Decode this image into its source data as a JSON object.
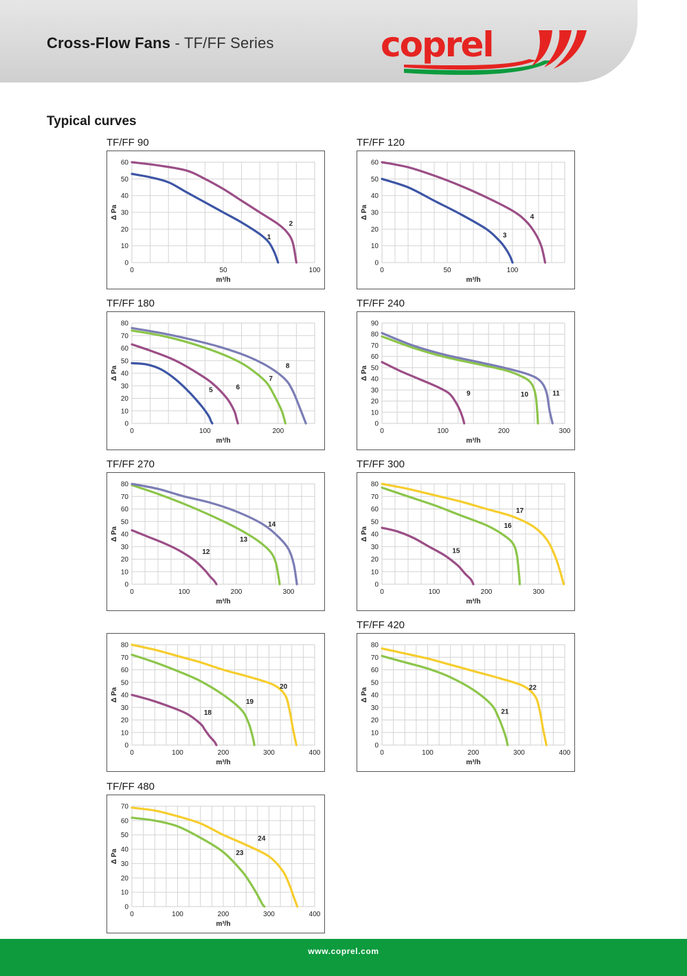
{
  "header": {
    "title_strong": "Cross-Flow Fans",
    "title_rest": " - TF/FF Series",
    "logo_text": "coprel"
  },
  "section_title": "Typical curves",
  "footer": {
    "url": "www.coprel.com"
  },
  "colors": {
    "magenta": "#9b4e86",
    "blue": "#3d55a5",
    "lavender": "#7b7db5",
    "green": "#8cc54a",
    "yellow": "#f6cd2d",
    "brand_red": "#e52421",
    "brand_green": "#0d9b3e"
  },
  "chart_data": [
    {
      "type": "line",
      "title": "TF/FF 90",
      "xlabel": "m³/h",
      "ylabel": "Δ Pa",
      "xlim": [
        0,
        100
      ],
      "ylim": [
        0,
        60
      ],
      "xticks": [
        0,
        50,
        100
      ],
      "yticks": [
        0,
        10,
        20,
        30,
        40,
        50,
        60
      ],
      "grid": true,
      "series": [
        {
          "name": "1",
          "color": "blue",
          "x": [
            0,
            10,
            20,
            30,
            40,
            50,
            60,
            70,
            75,
            78,
            80
          ],
          "y": [
            53,
            51,
            48,
            42,
            36,
            30,
            24,
            17,
            12,
            6,
            0
          ]
        },
        {
          "name": "2",
          "color": "magenta",
          "x": [
            0,
            15,
            30,
            40,
            50,
            60,
            70,
            80,
            85,
            88,
            90
          ],
          "y": [
            60,
            58,
            55,
            50,
            44,
            37,
            30,
            23,
            18,
            12,
            0
          ]
        }
      ],
      "labels": [
        {
          "text": "1",
          "x": 75,
          "y": 14
        },
        {
          "text": "2",
          "x": 87,
          "y": 22
        }
      ]
    },
    {
      "type": "line",
      "title": "TF/FF 120",
      "xlabel": "m³/h",
      "ylabel": "Δ Pa",
      "xlim": [
        0,
        140
      ],
      "ylim": [
        0,
        60
      ],
      "xticks": [
        0,
        50,
        100
      ],
      "yticks": [
        0,
        10,
        20,
        30,
        40,
        50,
        60
      ],
      "grid": true,
      "series": [
        {
          "name": "3",
          "color": "blue",
          "x": [
            0,
            20,
            40,
            60,
            80,
            90,
            95,
            98,
            100
          ],
          "y": [
            50,
            45,
            37,
            29,
            20,
            13,
            8,
            4,
            0
          ]
        },
        {
          "name": "4",
          "color": "magenta",
          "x": [
            0,
            20,
            40,
            60,
            80,
            100,
            110,
            117,
            122,
            125
          ],
          "y": [
            60,
            57,
            52,
            46,
            39,
            31,
            25,
            18,
            10,
            0
          ]
        }
      ],
      "labels": [
        {
          "text": "3",
          "x": 94,
          "y": 15
        },
        {
          "text": "4",
          "x": 115,
          "y": 26
        }
      ]
    },
    {
      "type": "line",
      "title": "TF/FF 180",
      "xlabel": "m³/h",
      "ylabel": "Δ Pa",
      "xlim": [
        0,
        250
      ],
      "ylim": [
        0,
        80
      ],
      "xticks": [
        0,
        100,
        200
      ],
      "yticks": [
        0,
        10,
        20,
        30,
        40,
        50,
        60,
        70,
        80
      ],
      "grid": true,
      "series": [
        {
          "name": "5",
          "color": "blue",
          "x": [
            0,
            20,
            40,
            60,
            80,
            95,
            105,
            108,
            110
          ],
          "y": [
            48,
            47,
            43,
            35,
            24,
            14,
            6,
            2,
            0
          ]
        },
        {
          "name": "6",
          "color": "magenta",
          "x": [
            0,
            30,
            60,
            90,
            110,
            130,
            140,
            143,
            145
          ],
          "y": [
            63,
            57,
            50,
            40,
            32,
            20,
            10,
            4,
            0
          ]
        },
        {
          "name": "7",
          "color": "green",
          "x": [
            0,
            40,
            80,
            120,
            150,
            170,
            185,
            195,
            205,
            210
          ],
          "y": [
            74,
            70,
            64,
            56,
            48,
            40,
            32,
            22,
            10,
            0
          ]
        },
        {
          "name": "8",
          "color": "lavender",
          "x": [
            0,
            40,
            80,
            120,
            160,
            190,
            210,
            220,
            230,
            238
          ],
          "y": [
            76,
            72,
            67,
            61,
            53,
            44,
            35,
            26,
            12,
            0
          ]
        }
      ],
      "labels": [
        {
          "text": "5",
          "x": 108,
          "y": 25
        },
        {
          "text": "6",
          "x": 145,
          "y": 27
        },
        {
          "text": "7",
          "x": 190,
          "y": 34
        },
        {
          "text": "8",
          "x": 213,
          "y": 44
        }
      ]
    },
    {
      "type": "line",
      "title": "TF/FF 240",
      "xlabel": "m³/h",
      "ylabel": "Δ Pa",
      "xlim": [
        0,
        300
      ],
      "ylim": [
        0,
        90
      ],
      "xticks": [
        0,
        100,
        200,
        300
      ],
      "yticks": [
        0,
        10,
        20,
        30,
        40,
        50,
        60,
        70,
        80,
        90
      ],
      "grid": true,
      "series": [
        {
          "name": "9",
          "color": "magenta",
          "x": [
            0,
            30,
            60,
            90,
            110,
            120,
            127,
            132,
            135
          ],
          "y": [
            55,
            47,
            40,
            33,
            27,
            20,
            13,
            6,
            0
          ]
        },
        {
          "name": "10",
          "color": "green",
          "x": [
            0,
            50,
            100,
            150,
            200,
            230,
            245,
            252,
            255,
            256
          ],
          "y": [
            78,
            68,
            60,
            54,
            48,
            42,
            36,
            26,
            10,
            0
          ]
        },
        {
          "name": "11",
          "color": "lavender",
          "x": [
            0,
            50,
            100,
            150,
            200,
            240,
            260,
            270,
            275,
            280
          ],
          "y": [
            81,
            70,
            62,
            56,
            50,
            44,
            38,
            28,
            12,
            0
          ]
        }
      ],
      "labels": [
        {
          "text": "9",
          "x": 142,
          "y": 25
        },
        {
          "text": "10",
          "x": 234,
          "y": 24
        },
        {
          "text": "11",
          "x": 286,
          "y": 25
        }
      ]
    },
    {
      "type": "line",
      "title": "TF/FF 270",
      "xlabel": "m³/h",
      "ylabel": "Δ Pa",
      "xlim": [
        0,
        350
      ],
      "ylim": [
        0,
        80
      ],
      "xticks": [
        0,
        100,
        200,
        300
      ],
      "yticks": [
        0,
        10,
        20,
        30,
        40,
        50,
        60,
        70,
        80
      ],
      "grid": true,
      "series": [
        {
          "name": "12",
          "color": "magenta",
          "x": [
            0,
            30,
            60,
            90,
            120,
            140,
            150,
            157,
            162
          ],
          "y": [
            43,
            38,
            33,
            27,
            19,
            11,
            6,
            3,
            0
          ]
        },
        {
          "name": "13",
          "color": "green",
          "x": [
            0,
            50,
            100,
            150,
            200,
            240,
            265,
            275,
            280,
            283
          ],
          "y": [
            79,
            72,
            64,
            55,
            45,
            35,
            26,
            18,
            8,
            0
          ]
        },
        {
          "name": "14",
          "color": "lavender",
          "x": [
            0,
            50,
            100,
            150,
            200,
            250,
            280,
            300,
            310,
            316
          ],
          "y": [
            80,
            76,
            70,
            65,
            58,
            48,
            38,
            28,
            16,
            0
          ]
        }
      ],
      "labels": [
        {
          "text": "12",
          "x": 142,
          "y": 24
        },
        {
          "text": "13",
          "x": 214,
          "y": 34
        },
        {
          "text": "14",
          "x": 268,
          "y": 46
        }
      ]
    },
    {
      "type": "line",
      "title": "TF/FF 300",
      "xlabel": "m³/h",
      "ylabel": "Δ Pa",
      "xlim": [
        0,
        350
      ],
      "ylim": [
        0,
        80
      ],
      "xticks": [
        0,
        100,
        200,
        300
      ],
      "yticks": [
        0,
        10,
        20,
        30,
        40,
        50,
        60,
        70,
        80
      ],
      "grid": true,
      "series": [
        {
          "name": "15",
          "color": "magenta",
          "x": [
            0,
            30,
            60,
            90,
            120,
            145,
            160,
            170,
            175
          ],
          "y": [
            45,
            42,
            37,
            30,
            23,
            15,
            8,
            4,
            0
          ]
        },
        {
          "name": "16",
          "color": "green",
          "x": [
            0,
            50,
            100,
            150,
            200,
            230,
            250,
            258,
            262,
            264
          ],
          "y": [
            77,
            70,
            63,
            55,
            47,
            40,
            33,
            24,
            10,
            0
          ]
        },
        {
          "name": "17",
          "color": "yellow",
          "x": [
            0,
            50,
            100,
            150,
            200,
            250,
            290,
            315,
            330,
            340,
            348
          ],
          "y": [
            80,
            76,
            71,
            66,
            60,
            54,
            46,
            36,
            24,
            12,
            0
          ]
        }
      ],
      "labels": [
        {
          "text": "15",
          "x": 142,
          "y": 25
        },
        {
          "text": "16",
          "x": 241,
          "y": 45
        },
        {
          "text": "17",
          "x": 264,
          "y": 57
        }
      ]
    },
    {
      "type": "line",
      "title": "",
      "xlabel": "m³/h",
      "ylabel": "Δ Pa",
      "xlim": [
        0,
        400
      ],
      "ylim": [
        0,
        80
      ],
      "xticks": [
        0,
        100,
        200,
        300,
        400
      ],
      "yticks": [
        0,
        10,
        20,
        30,
        40,
        50,
        60,
        70,
        80
      ],
      "grid": true,
      "series": [
        {
          "name": "18",
          "color": "magenta",
          "x": [
            0,
            40,
            80,
            120,
            150,
            160,
            170,
            180,
            185
          ],
          "y": [
            40,
            36,
            31,
            25,
            17,
            12,
            7,
            3,
            0
          ]
        },
        {
          "name": "19",
          "color": "green",
          "x": [
            0,
            50,
            100,
            150,
            200,
            240,
            255,
            262,
            266,
            268
          ],
          "y": [
            72,
            66,
            59,
            51,
            40,
            28,
            18,
            10,
            4,
            0
          ]
        },
        {
          "name": "20",
          "color": "yellow",
          "x": [
            0,
            50,
            100,
            150,
            200,
            260,
            310,
            335,
            345,
            352,
            360
          ],
          "y": [
            80,
            76,
            71,
            66,
            60,
            54,
            48,
            40,
            28,
            14,
            0
          ]
        }
      ],
      "labels": [
        {
          "text": "18",
          "x": 166,
          "y": 24
        },
        {
          "text": "19",
          "x": 258,
          "y": 33
        },
        {
          "text": "20",
          "x": 332,
          "y": 45
        }
      ]
    },
    {
      "type": "line",
      "title": "TF/FF 420",
      "xlabel": "m³/h",
      "ylabel": "Δ Pa",
      "xlim": [
        0,
        400
      ],
      "ylim": [
        0,
        80
      ],
      "xticks": [
        0,
        100,
        200,
        300,
        400
      ],
      "yticks": [
        0,
        10,
        20,
        30,
        40,
        50,
        60,
        70,
        80
      ],
      "grid": true,
      "series": [
        {
          "name": "21",
          "color": "green",
          "x": [
            0,
            50,
            100,
            150,
            200,
            240,
            255,
            265,
            272,
            275
          ],
          "y": [
            71,
            66,
            61,
            54,
            44,
            32,
            22,
            13,
            5,
            0
          ]
        },
        {
          "name": "22",
          "color": "yellow",
          "x": [
            0,
            50,
            100,
            150,
            200,
            260,
            310,
            335,
            345,
            352,
            360
          ],
          "y": [
            77,
            73,
            69,
            64,
            59,
            53,
            47,
            39,
            28,
            14,
            0
          ]
        }
      ],
      "labels": [
        {
          "text": "21",
          "x": 269,
          "y": 25
        },
        {
          "text": "22",
          "x": 330,
          "y": 44
        }
      ]
    },
    {
      "type": "line",
      "title": "TF/FF 480",
      "xlabel": "m³/h",
      "ylabel": "Δ Pa",
      "xlim": [
        0,
        400
      ],
      "ylim": [
        0,
        70
      ],
      "xticks": [
        0,
        100,
        200,
        300,
        400
      ],
      "yticks": [
        0,
        10,
        20,
        30,
        40,
        50,
        60,
        70
      ],
      "grid": true,
      "series": [
        {
          "name": "23",
          "color": "green",
          "x": [
            0,
            50,
            100,
            150,
            200,
            240,
            260,
            275,
            285,
            290
          ],
          "y": [
            62,
            60,
            56,
            48,
            38,
            25,
            16,
            8,
            2,
            0
          ]
        },
        {
          "name": "24",
          "color": "yellow",
          "x": [
            0,
            50,
            100,
            150,
            200,
            250,
            300,
            330,
            345,
            355,
            362
          ],
          "y": [
            69,
            67,
            63,
            58,
            50,
            43,
            35,
            25,
            15,
            6,
            0
          ]
        }
      ],
      "labels": [
        {
          "text": "23",
          "x": 236,
          "y": 36
        },
        {
          "text": "24",
          "x": 284,
          "y": 46
        }
      ]
    }
  ]
}
